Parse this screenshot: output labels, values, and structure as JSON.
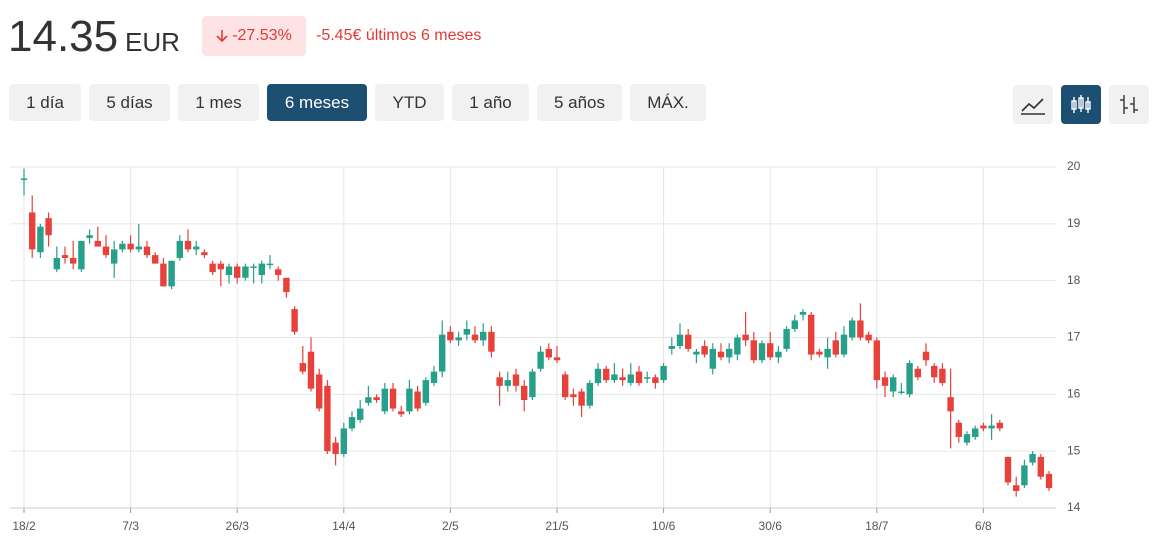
{
  "header": {
    "price": "14.35",
    "currency": "EUR",
    "change_pct": "-27.53%",
    "change_text": "-5.45€ últimos 6 meses"
  },
  "controls": {
    "ranges": [
      "1 día",
      "5 días",
      "1 mes",
      "6 meses",
      "YTD",
      "1 año",
      "5 años",
      "MÁX."
    ],
    "active": "6 meses"
  },
  "chart_data": {
    "type": "candlestick",
    "up_color": "#26a08a",
    "down_color": "#e8403a",
    "grid": true,
    "categories": [
      "18/2",
      null,
      null,
      null,
      null,
      null,
      null,
      null,
      null,
      null,
      null,
      null,
      null,
      "7/3",
      null,
      null,
      null,
      null,
      null,
      null,
      null,
      null,
      null,
      null,
      null,
      null,
      "26/3",
      null,
      null,
      null,
      null,
      null,
      null,
      null,
      null,
      null,
      null,
      null,
      null,
      "14/4",
      null,
      null,
      null,
      null,
      null,
      null,
      null,
      null,
      null,
      null,
      null,
      null,
      "2/5",
      null,
      null,
      null,
      null,
      null,
      null,
      null,
      null,
      null,
      null,
      null,
      null,
      "21/5",
      null,
      null,
      null,
      null,
      null,
      null,
      null,
      null,
      null,
      null,
      null,
      null,
      "10/6",
      null,
      null,
      null,
      null,
      null,
      null,
      null,
      null,
      null,
      null,
      null,
      null,
      "30/6",
      null,
      null,
      null,
      null,
      null,
      null,
      null,
      null,
      null,
      null,
      null,
      null,
      "18/7",
      null,
      null,
      null,
      null,
      null,
      null,
      null,
      null,
      null,
      null,
      null,
      null,
      "6/8",
      null,
      null,
      null,
      null,
      null,
      null,
      null,
      null
    ],
    "open": [
      19.8,
      19.2,
      18.5,
      19.1,
      18.2,
      18.45,
      18.4,
      18.2,
      18.75,
      18.7,
      18.6,
      18.3,
      18.55,
      18.65,
      18.55,
      18.6,
      18.45,
      18.3,
      17.9,
      18.4,
      18.7,
      18.55,
      18.5,
      18.3,
      18.3,
      18.1,
      18.25,
      18.05,
      18.25,
      18.1,
      18.3,
      18.2,
      18.05,
      17.5,
      16.55,
      16.75,
      16.35,
      16.15,
      15.15,
      14.95,
      15.4,
      15.55,
      15.85,
      15.95,
      15.7,
      16.1,
      15.7,
      15.7,
      16.05,
      15.85,
      16.2,
      16.4,
      17.1,
      16.95,
      17.05,
      17.05,
      16.95,
      17.1,
      16.3,
      16.15,
      16.35,
      16.15,
      15.95,
      16.45,
      16.8,
      16.65,
      16.35,
      16.0,
      16.05,
      15.8,
      16.2,
      16.45,
      16.25,
      16.3,
      16.2,
      16.4,
      16.3,
      16.3,
      16.25,
      16.8,
      16.85,
      17.05,
      16.7,
      16.85,
      16.45,
      16.75,
      16.65,
      16.7,
      17.05,
      16.95,
      16.6,
      16.9,
      16.65,
      16.8,
      17.15,
      17.4,
      17.4,
      16.75,
      16.65,
      16.95,
      16.7,
      17.0,
      17.3,
      17.05,
      16.95,
      16.3,
      16.05,
      16.05,
      16.0,
      16.45,
      16.75,
      16.5,
      16.45,
      15.95,
      15.5,
      15.15,
      15.25,
      15.45,
      15.4,
      15.5,
      14.9,
      14.4,
      14.4,
      14.8,
      14.9,
      14.6
    ],
    "high": [
      19.97,
      19.5,
      19.0,
      19.2,
      18.6,
      18.6,
      18.7,
      18.7,
      18.9,
      18.95,
      18.8,
      18.7,
      18.7,
      18.8,
      19.0,
      18.7,
      18.5,
      18.4,
      18.35,
      18.8,
      18.9,
      18.7,
      18.55,
      18.35,
      18.35,
      18.3,
      18.3,
      18.3,
      18.3,
      18.35,
      18.45,
      18.25,
      18.05,
      17.55,
      16.85,
      17.0,
      16.45,
      16.25,
      15.25,
      15.5,
      15.7,
      15.9,
      16.15,
      16.0,
      16.2,
      16.2,
      15.8,
      16.25,
      16.15,
      16.3,
      16.5,
      17.3,
      17.2,
      17.1,
      17.3,
      17.2,
      17.25,
      17.2,
      16.4,
      16.4,
      16.45,
      16.25,
      16.45,
      16.85,
      16.9,
      16.85,
      16.4,
      16.1,
      16.1,
      16.25,
      16.55,
      16.5,
      16.55,
      16.45,
      16.55,
      16.5,
      16.4,
      16.35,
      16.55,
      17.0,
      17.25,
      17.15,
      16.8,
      16.95,
      16.9,
      16.9,
      16.9,
      17.05,
      17.45,
      17.1,
      16.95,
      17.1,
      16.85,
      17.2,
      17.4,
      17.5,
      17.45,
      16.8,
      17.0,
      17.1,
      17.2,
      17.35,
      17.6,
      17.1,
      17.0,
      16.4,
      16.35,
      16.2,
      16.6,
      16.5,
      16.9,
      16.55,
      16.55,
      16.45,
      15.55,
      15.35,
      15.45,
      15.5,
      15.65,
      15.55,
      14.9,
      14.55,
      14.85,
      15.0,
      14.95,
      14.65
    ],
    "low": [
      19.5,
      18.4,
      18.4,
      18.6,
      18.15,
      18.3,
      18.2,
      18.15,
      18.65,
      18.6,
      18.4,
      18.05,
      18.5,
      18.5,
      18.5,
      18.4,
      18.3,
      17.9,
      17.85,
      18.35,
      18.5,
      18.45,
      18.4,
      18.1,
      17.9,
      17.95,
      17.95,
      18.0,
      17.95,
      17.95,
      18.2,
      18.0,
      17.7,
      17.05,
      16.35,
      16.05,
      15.7,
      14.95,
      14.75,
      14.9,
      15.35,
      15.5,
      15.8,
      15.85,
      15.65,
      15.7,
      15.6,
      15.65,
      15.7,
      15.8,
      16.15,
      16.3,
      16.9,
      16.85,
      16.95,
      16.9,
      16.85,
      16.65,
      15.8,
      16.05,
      16.05,
      15.7,
      15.9,
      16.4,
      16.6,
      16.55,
      15.9,
      15.8,
      15.6,
      15.75,
      16.15,
      16.2,
      16.2,
      16.15,
      16.15,
      16.15,
      16.2,
      16.1,
      16.2,
      16.7,
      16.8,
      16.75,
      16.55,
      16.65,
      16.35,
      16.6,
      16.55,
      16.6,
      16.85,
      16.55,
      16.55,
      16.6,
      16.55,
      16.75,
      17.1,
      17.3,
      16.6,
      16.65,
      16.45,
      16.65,
      16.65,
      16.95,
      16.95,
      16.9,
      16.1,
      15.95,
      15.95,
      16.0,
      15.95,
      16.25,
      16.5,
      16.2,
      16.15,
      15.05,
      15.15,
      15.1,
      15.2,
      15.35,
      15.2,
      15.35,
      14.4,
      14.2,
      14.35,
      14.75,
      14.5,
      14.3
    ],
    "close": [
      19.8,
      18.55,
      18.95,
      18.8,
      18.4,
      18.4,
      18.3,
      18.7,
      18.8,
      18.6,
      18.45,
      18.55,
      18.65,
      18.55,
      18.6,
      18.45,
      18.3,
      17.9,
      18.35,
      18.7,
      18.55,
      18.6,
      18.45,
      18.15,
      18.2,
      18.25,
      18.05,
      18.25,
      18.25,
      18.3,
      18.3,
      18.1,
      17.8,
      17.1,
      16.4,
      16.1,
      15.75,
      15.0,
      14.95,
      15.4,
      15.6,
      15.75,
      15.95,
      15.9,
      16.1,
      15.75,
      15.65,
      16.1,
      15.75,
      16.25,
      16.4,
      17.05,
      16.95,
      17.0,
      17.15,
      16.95,
      17.1,
      16.75,
      16.15,
      16.25,
      16.15,
      15.9,
      16.4,
      16.75,
      16.65,
      16.6,
      15.95,
      15.95,
      15.8,
      16.2,
      16.45,
      16.25,
      16.35,
      16.25,
      16.35,
      16.2,
      16.3,
      16.2,
      16.5,
      16.85,
      17.05,
      16.8,
      16.75,
      16.7,
      16.8,
      16.65,
      16.8,
      17.0,
      16.95,
      16.6,
      16.9,
      16.65,
      16.75,
      17.15,
      17.3,
      17.45,
      16.7,
      16.7,
      16.8,
      16.7,
      17.05,
      17.3,
      17.0,
      16.95,
      16.25,
      16.15,
      16.3,
      16.05,
      16.55,
      16.3,
      16.6,
      16.3,
      16.2,
      15.7,
      15.25,
      15.3,
      15.4,
      15.4,
      15.45,
      15.4,
      14.45,
      14.3,
      14.75,
      14.95,
      14.55,
      14.35
    ],
    "ylim": [
      14,
      20
    ],
    "yticks": [
      14,
      15,
      16,
      17,
      18,
      19,
      20
    ]
  }
}
